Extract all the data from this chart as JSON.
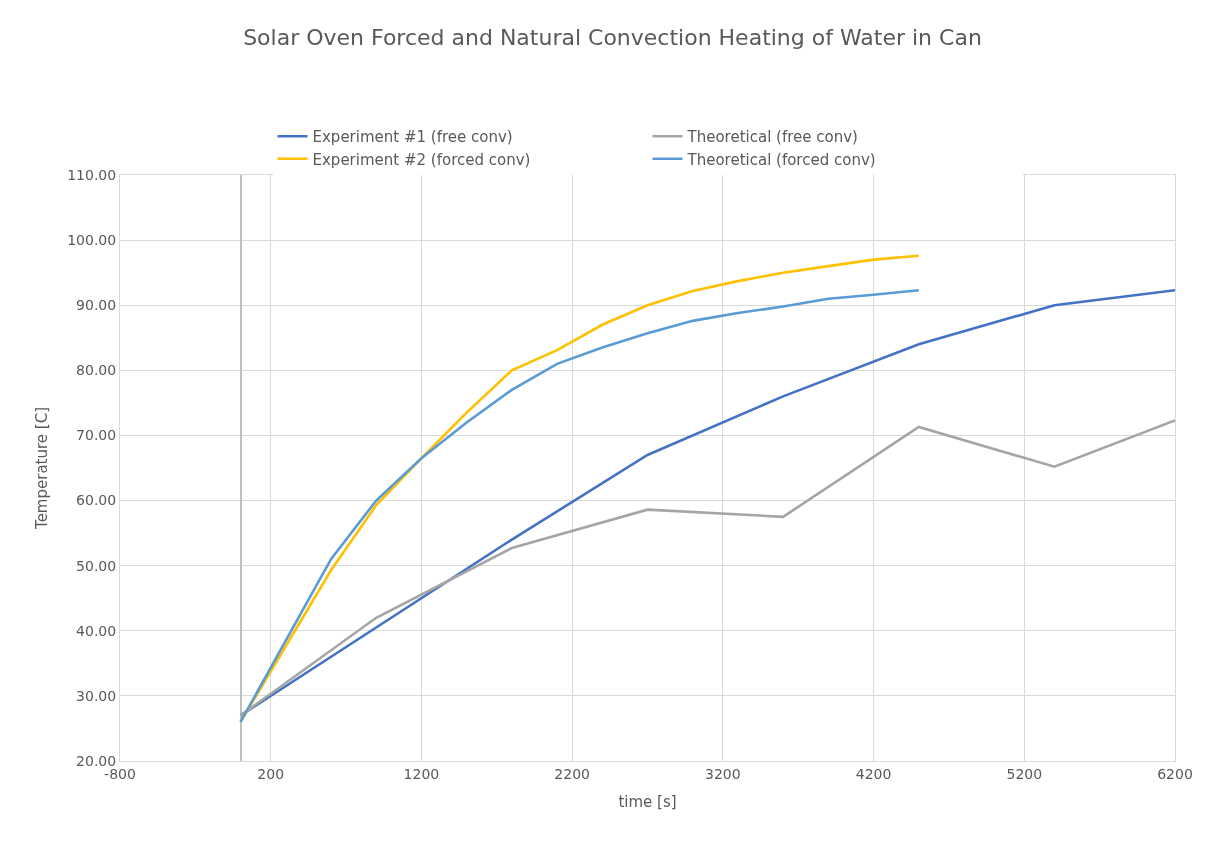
{
  "chart_data": {
    "type": "line",
    "title": "Solar Oven Forced and Natural Convection Heating of Water in Can",
    "xlabel": "time [s]",
    "ylabel": "Temperature [C]",
    "xlim": [
      -800,
      6200
    ],
    "xticks": [
      -800,
      200,
      1200,
      2200,
      3200,
      4200,
      5200,
      6200
    ],
    "ylim": [
      20,
      110
    ],
    "yticks": [
      {
        "value": 20,
        "label": "20.00"
      },
      {
        "value": 30,
        "label": "30.00"
      },
      {
        "value": 40,
        "label": "40.00"
      },
      {
        "value": 50,
        "label": "50.00"
      },
      {
        "value": 60,
        "label": "60.00"
      },
      {
        "value": 70,
        "label": "70.00"
      },
      {
        "value": 80,
        "label": "80.00"
      },
      {
        "value": 90,
        "label": "90.00"
      },
      {
        "value": 100,
        "label": "100.00"
      },
      {
        "value": 110,
        "label": "110.00"
      }
    ],
    "grid": true,
    "legend": "top",
    "marker": "none",
    "line_style": "solid",
    "series": [
      {
        "name": "Experiment #1 (free conv)",
        "color": "#4472c4",
        "x": [
          0,
          900,
          1800,
          2700,
          3600,
          4500,
          5400,
          6200
        ],
        "values": [
          27,
          40.5,
          54,
          67,
          76,
          84,
          90,
          92.3
        ]
      },
      {
        "name": "Theoretical (free conv)",
        "color": "#a5a5a5",
        "x": [
          0,
          900,
          1800,
          2700,
          3600,
          4500,
          5400,
          6200
        ],
        "values": [
          27,
          42,
          52.7,
          58.6,
          57.5,
          71.3,
          65.2,
          72.3
        ]
      },
      {
        "name": "Experiment #2 (forced conv)",
        "color": "#ffc000",
        "x": [
          0,
          600,
          900,
          1200,
          1500,
          1800,
          2100,
          2400,
          2700,
          3000,
          3300,
          3600,
          3900,
          4200,
          4500
        ],
        "values": [
          26,
          49.3,
          59.3,
          66.5,
          73.5,
          80,
          83.1,
          87,
          90,
          92.2,
          93.7,
          95,
          96,
          97,
          97.6
        ]
      },
      {
        "name": "Theoretical (forced conv)",
        "color": "#5b9bd5",
        "x": [
          0,
          600,
          900,
          1200,
          1500,
          1800,
          2100,
          2400,
          2700,
          3000,
          3300,
          3600,
          3900,
          4200,
          4500
        ],
        "values": [
          26,
          51,
          60,
          66.5,
          72,
          77,
          81,
          83.5,
          85.7,
          87.6,
          88.8,
          89.8,
          91,
          91.6,
          92.3
        ]
      }
    ]
  }
}
